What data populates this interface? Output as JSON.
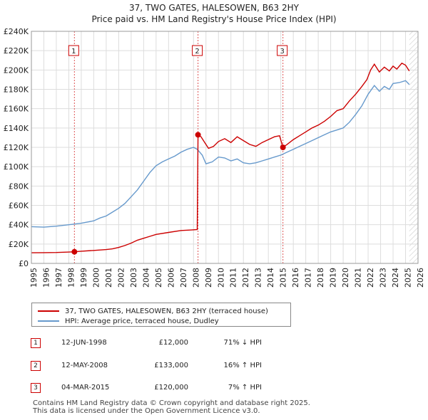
{
  "title_line1": "37, TWO GATES, HALESOWEN, B63 2HY",
  "title_line2": "Price paid vs. HM Land Registry's House Price Index (HPI)",
  "colors": {
    "red": "#cc0000",
    "blue": "#6699cc",
    "grid": "#dddddd",
    "hatch": "#cccccc"
  },
  "legend": {
    "red_label": "37, TWO GATES, HALESOWEN, B63 2HY (terraced house)",
    "blue_label": "HPI: Average price, terraced house, Dudley"
  },
  "transactions": [
    {
      "num": "1",
      "date": "12-JUN-1998",
      "price": "£12,000",
      "hpi": "71% ↓ HPI"
    },
    {
      "num": "2",
      "date": "12-MAY-2008",
      "price": "£133,000",
      "hpi": "16% ↑ HPI"
    },
    {
      "num": "3",
      "date": "04-MAR-2015",
      "price": "£120,000",
      "hpi": "7% ↑ HPI"
    }
  ],
  "footer": {
    "line1": "Contains HM Land Registry data © Crown copyright and database right 2025.",
    "line2": "This data is licensed under the Open Government Licence v3.0."
  },
  "chart_data": {
    "type": "line",
    "title": "37, TWO GATES, HALESOWEN, B63 2HY — Price paid vs. HM Land Registry's House Price Index (HPI)",
    "xlim": [
      1995,
      2026
    ],
    "ylim": [
      0,
      240000
    ],
    "x_ticks": [
      1995,
      1996,
      1997,
      1998,
      1999,
      2000,
      2001,
      2002,
      2003,
      2004,
      2005,
      2006,
      2007,
      2008,
      2009,
      2010,
      2011,
      2012,
      2013,
      2014,
      2015,
      2016,
      2017,
      2018,
      2019,
      2020,
      2021,
      2022,
      2023,
      2024,
      2025,
      2026
    ],
    "y_ticks": [
      {
        "value": 0,
        "label": "£0"
      },
      {
        "value": 20000,
        "label": "£20K"
      },
      {
        "value": 40000,
        "label": "£40K"
      },
      {
        "value": 60000,
        "label": "£60K"
      },
      {
        "value": 80000,
        "label": "£80K"
      },
      {
        "value": 100000,
        "label": "£100K"
      },
      {
        "value": 120000,
        "label": "£120K"
      },
      {
        "value": 140000,
        "label": "£140K"
      },
      {
        "value": 160000,
        "label": "£160K"
      },
      {
        "value": 180000,
        "label": "£180K"
      },
      {
        "value": 200000,
        "label": "£200K"
      },
      {
        "value": 220000,
        "label": "£220K"
      },
      {
        "value": 240000,
        "label": "£240K"
      }
    ],
    "forecast_start": 2025.3,
    "markers": [
      {
        "label": "1",
        "x": 1998.45,
        "y": 12000
      },
      {
        "label": "2",
        "x": 2008.36,
        "y": 133000
      },
      {
        "label": "3",
        "x": 2015.17,
        "y": 120000
      }
    ],
    "series": [
      {
        "name": "37, TWO GATES, HALESOWEN, B63 2HY (terraced house)",
        "color": "#cc0000",
        "points": [
          [
            1995.0,
            11000
          ],
          [
            1996.0,
            11100
          ],
          [
            1997.0,
            11300
          ],
          [
            1998.0,
            11700
          ],
          [
            1998.45,
            12000
          ],
          [
            1999.0,
            12600
          ],
          [
            2000.0,
            13400
          ],
          [
            2001.0,
            14300
          ],
          [
            2001.5,
            15000
          ],
          [
            2002.0,
            16500
          ],
          [
            2002.5,
            18500
          ],
          [
            2003.0,
            21000
          ],
          [
            2003.5,
            24000
          ],
          [
            2004.0,
            26000
          ],
          [
            2004.5,
            28000
          ],
          [
            2005.0,
            30000
          ],
          [
            2006.0,
            32000
          ],
          [
            2007.0,
            34000
          ],
          [
            2007.8,
            34500
          ],
          [
            2008.3,
            35000
          ],
          [
            2008.36,
            133000
          ],
          [
            2008.6,
            131000
          ],
          [
            2008.9,
            125000
          ],
          [
            2009.2,
            119000
          ],
          [
            2009.6,
            121000
          ],
          [
            2010.0,
            126000
          ],
          [
            2010.5,
            129000
          ],
          [
            2011.0,
            125000
          ],
          [
            2011.5,
            131000
          ],
          [
            2012.0,
            127000
          ],
          [
            2012.5,
            123000
          ],
          [
            2013.0,
            121000
          ],
          [
            2013.5,
            125000
          ],
          [
            2014.0,
            128000
          ],
          [
            2014.5,
            131000
          ],
          [
            2014.9,
            132000
          ],
          [
            2015.17,
            120000
          ],
          [
            2015.5,
            123000
          ],
          [
            2016.0,
            128000
          ],
          [
            2016.5,
            132000
          ],
          [
            2017.0,
            136000
          ],
          [
            2017.5,
            140000
          ],
          [
            2018.0,
            143000
          ],
          [
            2018.5,
            147000
          ],
          [
            2019.0,
            152000
          ],
          [
            2019.5,
            158000
          ],
          [
            2020.0,
            160000
          ],
          [
            2020.5,
            168000
          ],
          [
            2021.0,
            175000
          ],
          [
            2021.5,
            183000
          ],
          [
            2021.9,
            190000
          ],
          [
            2022.2,
            200000
          ],
          [
            2022.5,
            206000
          ],
          [
            2022.9,
            198000
          ],
          [
            2023.3,
            203000
          ],
          [
            2023.7,
            199000
          ],
          [
            2024.0,
            204000
          ],
          [
            2024.3,
            201000
          ],
          [
            2024.7,
            207000
          ],
          [
            2025.0,
            205000
          ],
          [
            2025.3,
            199000
          ]
        ]
      },
      {
        "name": "HPI: Average price, terraced house, Dudley",
        "color": "#6699cc",
        "points": [
          [
            1995.0,
            38000
          ],
          [
            1996.0,
            37500
          ],
          [
            1997.0,
            38500
          ],
          [
            1998.0,
            40000
          ],
          [
            1999.0,
            41500
          ],
          [
            2000.0,
            44000
          ],
          [
            2000.5,
            47000
          ],
          [
            2001.0,
            49000
          ],
          [
            2001.5,
            53000
          ],
          [
            2002.0,
            57000
          ],
          [
            2002.5,
            62000
          ],
          [
            2003.0,
            69000
          ],
          [
            2003.5,
            76000
          ],
          [
            2004.0,
            85000
          ],
          [
            2004.5,
            94000
          ],
          [
            2005.0,
            101000
          ],
          [
            2005.5,
            105000
          ],
          [
            2006.0,
            108000
          ],
          [
            2006.5,
            111000
          ],
          [
            2007.0,
            115000
          ],
          [
            2007.5,
            118000
          ],
          [
            2008.0,
            120000
          ],
          [
            2008.3,
            118000
          ],
          [
            2008.7,
            112000
          ],
          [
            2009.0,
            103000
          ],
          [
            2009.5,
            105000
          ],
          [
            2010.0,
            110000
          ],
          [
            2010.5,
            109000
          ],
          [
            2011.0,
            106000
          ],
          [
            2011.5,
            108000
          ],
          [
            2012.0,
            104000
          ],
          [
            2012.5,
            103000
          ],
          [
            2013.0,
            104000
          ],
          [
            2013.5,
            106000
          ],
          [
            2014.0,
            108000
          ],
          [
            2014.5,
            110000
          ],
          [
            2015.0,
            112000
          ],
          [
            2015.5,
            115000
          ],
          [
            2016.0,
            118000
          ],
          [
            2016.5,
            121000
          ],
          [
            2017.0,
            124000
          ],
          [
            2017.5,
            127000
          ],
          [
            2018.0,
            130000
          ],
          [
            2018.5,
            133000
          ],
          [
            2019.0,
            136000
          ],
          [
            2019.5,
            138000
          ],
          [
            2020.0,
            140000
          ],
          [
            2020.5,
            146000
          ],
          [
            2021.0,
            154000
          ],
          [
            2021.5,
            163000
          ],
          [
            2022.0,
            175000
          ],
          [
            2022.5,
            184000
          ],
          [
            2022.9,
            178000
          ],
          [
            2023.3,
            183000
          ],
          [
            2023.7,
            180000
          ],
          [
            2024.0,
            186000
          ],
          [
            2024.5,
            187000
          ],
          [
            2025.0,
            189000
          ],
          [
            2025.3,
            185000
          ]
        ]
      }
    ]
  }
}
